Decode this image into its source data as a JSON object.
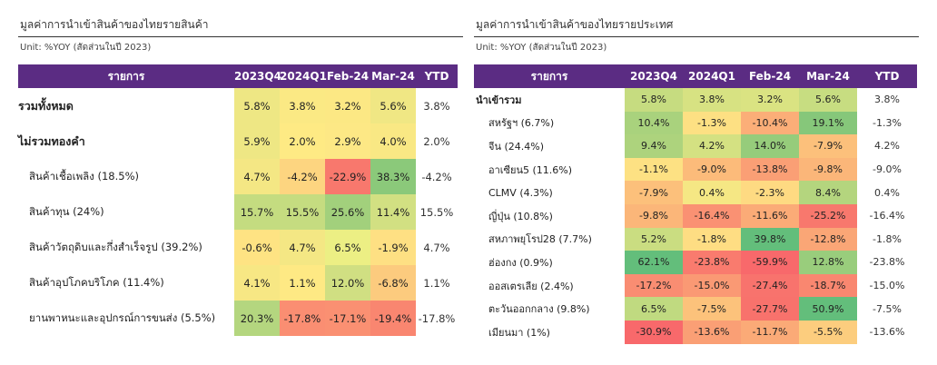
{
  "left": {
    "title": "มูลค่าการนำเข้าสินค้าของไทยรายสินค้า",
    "unit": "Unit: %YOY (สัดส่วนในปี 2023)",
    "headers": [
      "รายการ",
      "2023Q4",
      "2024Q1",
      "Feb-24",
      "Mar-24",
      "YTD"
    ],
    "rows": [
      {
        "label": "รวมทั้งหมด",
        "bold": true,
        "values": [
          "5.8%",
          "3.8%",
          "3.2%",
          "5.6%"
        ],
        "colors": [
          "#eee784",
          "#fbe984",
          "#fce884",
          "#f0e784"
        ],
        "ytd": "3.8%"
      },
      {
        "label": "ไม่รวมทองคำ",
        "bold": true,
        "values": [
          "5.9%",
          "2.0%",
          "2.9%",
          "4.0%"
        ],
        "colors": [
          "#eee784",
          "#feea84",
          "#fde885",
          "#f9e884"
        ],
        "ytd": "2.0%"
      },
      {
        "label": "สินค้าเชื้อเพลิง (18.5%)",
        "bold": false,
        "values": [
          "4.7%",
          "-4.2%",
          "-22.9%",
          "38.3%"
        ],
        "colors": [
          "#f4e784",
          "#fdd580",
          "#f8786d",
          "#8bc97a"
        ],
        "ytd": "-4.2%"
      },
      {
        "label": "สินค้าทุน (24%)",
        "bold": false,
        "values": [
          "15.7%",
          "15.5%",
          "25.6%",
          "11.4%"
        ],
        "colors": [
          "#c4dc80",
          "#c5dc80",
          "#a2d07c",
          "#d2e082"
        ],
        "ytd": "15.5%"
      },
      {
        "label": "สินค้าวัตถุดิบและกึ่งสำเร็จรูป (39.2%)",
        "bold": false,
        "values": [
          "-0.6%",
          "4.7%",
          "6.5%",
          "-1.9%"
        ],
        "colors": [
          "#fee383",
          "#f4e784",
          "#ecef84",
          "#fee083"
        ],
        "ytd": "4.7%"
      },
      {
        "label": "สินค้าอุปโภคบริโภค (11.4%)",
        "bold": false,
        "values": [
          "4.1%",
          "1.1%",
          "12.0%",
          "-6.8%"
        ],
        "colors": [
          "#f7e784",
          "#fee984",
          "#d0df82",
          "#fccb7e"
        ],
        "ytd": "1.1%"
      },
      {
        "label": "ยานพาหนะและอุปกรณ์การขนส่ง (5.5%)",
        "bold": false,
        "values": [
          "20.3%",
          "-17.8%",
          "-17.1%",
          "-19.4%"
        ],
        "colors": [
          "#b4d67f",
          "#fa8e72",
          "#fa9072",
          "#f98670"
        ],
        "ytd": "-17.8%"
      }
    ]
  },
  "right": {
    "title": "มูลค่าการนำเข้าสินค้าของไทยรายประเทศ",
    "unit": "Unit: %YOY (สัดส่วนในปี 2023)",
    "headers": [
      "รายการ",
      "2023Q4",
      "2024Q1",
      "Feb-24",
      "Mar-24",
      "YTD"
    ],
    "rows": [
      {
        "label": "นำเข้ารวม",
        "bold": true,
        "values": [
          "5.8%",
          "3.8%",
          "3.2%",
          "5.6%"
        ],
        "colors": [
          "#c6dc80",
          "#d7e282",
          "#dae382",
          "#c7dd81"
        ],
        "ytd": "3.8%"
      },
      {
        "label": "สหรัฐฯ (6.7%)",
        "bold": false,
        "values": [
          "10.4%",
          "-1.3%",
          "-10.4%",
          "19.1%"
        ],
        "colors": [
          "#a9d27d",
          "#fde083",
          "#fbae78",
          "#86c77a"
        ],
        "ytd": "-1.3%"
      },
      {
        "label": "จีน (24.4%)",
        "bold": false,
        "values": [
          "9.4%",
          "4.2%",
          "14.0%",
          "-7.9%"
        ],
        "colors": [
          "#add37d",
          "#d4e182",
          "#96cc7b",
          "#fcc07b"
        ],
        "ytd": "4.2%"
      },
      {
        "label": "อาเซียน5 (11.6%)",
        "bold": false,
        "values": [
          "-1.1%",
          "-9.0%",
          "-13.8%",
          "-9.8%"
        ],
        "colors": [
          "#fde183",
          "#fcbb7a",
          "#fa9f75",
          "#fbb679"
        ],
        "ytd": "-9.0%"
      },
      {
        "label": "CLMV (4.3%)",
        "bold": false,
        "values": [
          "-7.9%",
          "0.4%",
          "-2.3%",
          "8.4%"
        ],
        "colors": [
          "#fcc07b",
          "#f5e784",
          "#feda82",
          "#b4d57e"
        ],
        "ytd": "0.4%"
      },
      {
        "label": "ญี่ปุ่น (10.8%)",
        "bold": false,
        "values": [
          "-9.8%",
          "-16.4%",
          "-11.6%",
          "-25.2%"
        ],
        "colors": [
          "#fbb679",
          "#fa9173",
          "#fbab77",
          "#f8786d"
        ],
        "ytd": "-16.4%"
      },
      {
        "label": "สหภาพยุโรป28 (7.7%)",
        "bold": false,
        "values": [
          "5.2%",
          "-1.8%",
          "39.8%",
          "-12.8%"
        ],
        "colors": [
          "#cadd81",
          "#fedd83",
          "#63be7b",
          "#faa676"
        ],
        "ytd": "-1.8%"
      },
      {
        "label": "ฮ่องกง (0.9%)",
        "bold": false,
        "values": [
          "62.1%",
          "-23.8%",
          "-59.9%",
          "12.8%"
        ],
        "colors": [
          "#63be7b",
          "#f97b6e",
          "#f8696b",
          "#99cd7c"
        ],
        "ytd": "-23.8%"
      },
      {
        "label": "ออสเตรเลีย (2.4%)",
        "bold": false,
        "values": [
          "-17.2%",
          "-15.0%",
          "-27.4%",
          "-18.7%"
        ],
        "colors": [
          "#f98d72",
          "#fa9974",
          "#f8736d",
          "#f98770"
        ],
        "ytd": "-15.0%"
      },
      {
        "label": "ตะวันออกกลาง (9.8%)",
        "bold": false,
        "values": [
          "6.5%",
          "-7.5%",
          "-27.7%",
          "50.9%"
        ],
        "colors": [
          "#c0da80",
          "#fcc27b",
          "#f8726c",
          "#63be7b"
        ],
        "ytd": "-7.5%"
      },
      {
        "label": "เมียนมา (1%)",
        "bold": false,
        "values": [
          "-30.9%",
          "-13.6%",
          "-11.7%",
          "-5.5%"
        ],
        "colors": [
          "#f8696b",
          "#fa9f75",
          "#fbaa77",
          "#fccd7e"
        ],
        "ytd": "-13.6%"
      }
    ]
  }
}
